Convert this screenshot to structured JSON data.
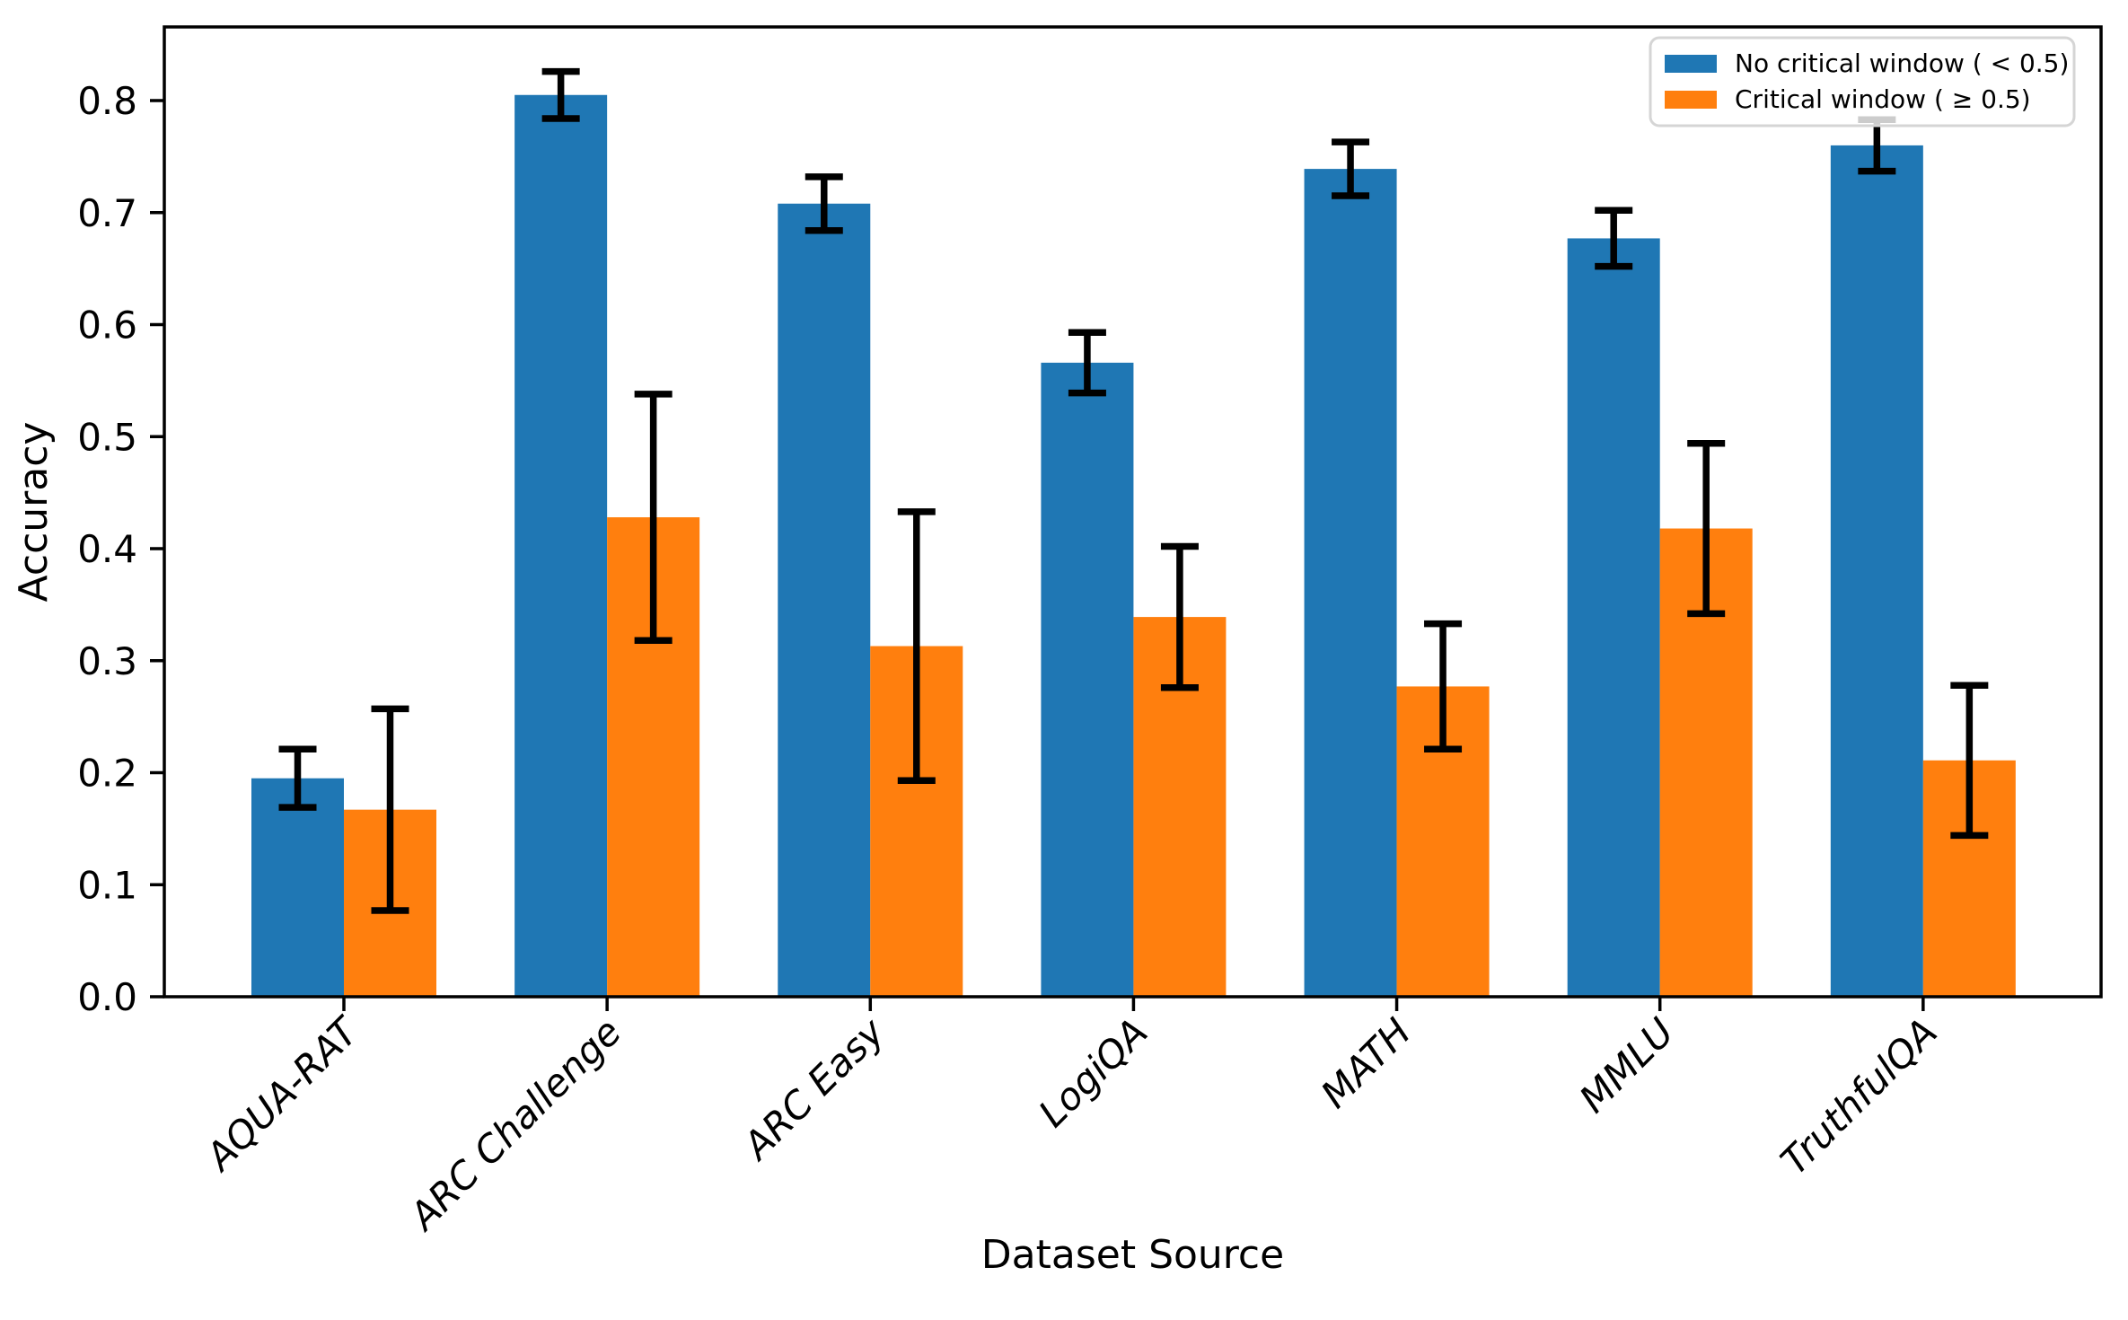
{
  "figure": {
    "background": "#ffffff",
    "accent_blue": "#1f77b4",
    "accent_orange": "#ff7f0e",
    "error_bar_color": "#000000",
    "legend_border_color": "#d5d5d5"
  },
  "chart_data": {
    "type": "bar",
    "title": "",
    "xlabel": "Dataset Source",
    "ylabel": "Accuracy",
    "categories": [
      "AQUA-RAT",
      "ARC Challenge",
      "ARC Easy",
      "LogiQA",
      "MATH",
      "MMLU",
      "TruthfulQA"
    ],
    "series": [
      {
        "name": "No critical window ( < 0.5)",
        "color": "#1f77b4",
        "values": [
          0.195,
          0.805,
          0.708,
          0.566,
          0.739,
          0.677,
          0.76
        ],
        "errors": [
          0.026,
          0.021,
          0.024,
          0.027,
          0.024,
          0.025,
          0.023
        ]
      },
      {
        "name": "Critical window ( ≥ 0.5)",
        "color": "#ff7f0e",
        "values": [
          0.167,
          0.428,
          0.313,
          0.339,
          0.277,
          0.418,
          0.211
        ],
        "errors": [
          0.09,
          0.11,
          0.12,
          0.063,
          0.056,
          0.076,
          0.067
        ]
      }
    ],
    "ylim": [
      0,
      0.866
    ],
    "yticks": [
      0.0,
      0.1,
      0.2,
      0.3,
      0.4,
      0.5,
      0.6,
      0.7,
      0.8
    ],
    "ytick_labels": [
      "0.0",
      "0.1",
      "0.2",
      "0.3",
      "0.4",
      "0.5",
      "0.6",
      "0.7",
      "0.8"
    ],
    "grid": false,
    "legend_position": "upper right",
    "xtick_label_style": "italic rotated 45deg",
    "error_bars": true
  }
}
